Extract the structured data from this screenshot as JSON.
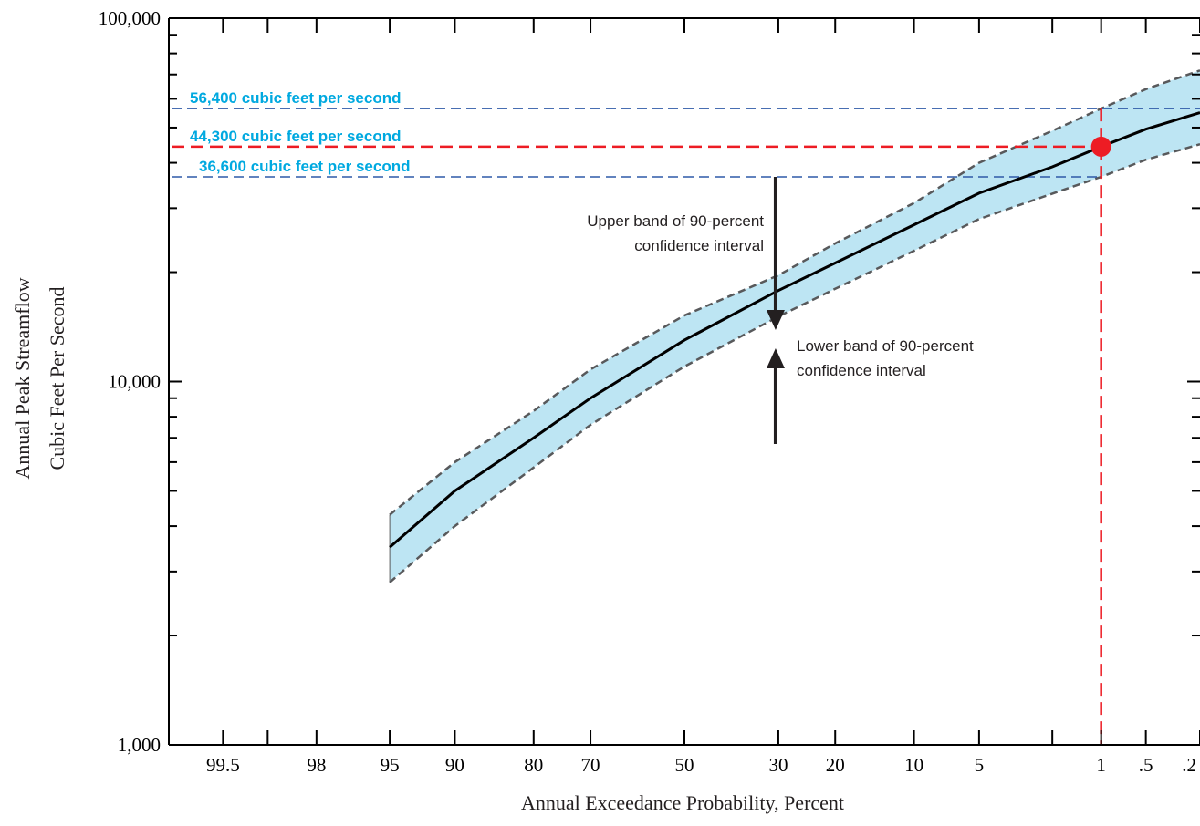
{
  "chart_data": {
    "type": "line",
    "xlabel": "Annual Exceedance Probability, Percent",
    "ylabel_lines": [
      "Annual Peak Streamflow",
      "Cubic Feet Per Second"
    ],
    "y_scale": "log",
    "ylim": [
      1000,
      100000
    ],
    "y_tick_labels": [
      "1,000",
      "10,000",
      "100,000"
    ],
    "y_tick_values": [
      1000,
      10000,
      100000
    ],
    "x_scale": "normal-probability (reversed)",
    "x_tick_labels": [
      "99.5",
      "98",
      "95",
      "90",
      "80",
      "70",
      "50",
      "30",
      "20",
      "10",
      "5",
      "1",
      ".5",
      ".2"
    ],
    "x_tick_values": [
      99.5,
      98,
      95,
      90,
      80,
      70,
      50,
      30,
      20,
      10,
      5,
      1,
      0.5,
      0.2
    ],
    "x_range": [
      99.8,
      0.2
    ],
    "series": [
      {
        "role": "estimate",
        "x": [
          95,
          90,
          80,
          70,
          50,
          30,
          20,
          10,
          5,
          2,
          1,
          0.5,
          0.2
        ],
        "y": [
          3500,
          5000,
          7000,
          9000,
          13000,
          17800,
          21200,
          27000,
          33000,
          39000,
          44300,
          49500,
          55000
        ]
      },
      {
        "role": "upper-90",
        "x": [
          95,
          90,
          80,
          70,
          50,
          30,
          20,
          10,
          5,
          2,
          1,
          0.5,
          0.2
        ],
        "y": [
          4300,
          6000,
          8300,
          10800,
          15200,
          19600,
          24000,
          31000,
          40000,
          49000,
          56400,
          63800,
          71800
        ]
      },
      {
        "role": "lower-90",
        "x": [
          95,
          90,
          80,
          70,
          50,
          30,
          20,
          10,
          5,
          2,
          1,
          0.5,
          0.2
        ],
        "y": [
          2800,
          4000,
          5800,
          7600,
          11000,
          15100,
          18000,
          22900,
          28000,
          32900,
          36600,
          40800,
          45000
        ]
      }
    ],
    "highlight": {
      "x": 1,
      "y": 44300
    },
    "reference_lines": [
      {
        "label": "56,400 cubic feet per second",
        "value": 56400
      },
      {
        "label": "44,300 cubic feet per second",
        "value": 44300
      },
      {
        "label": "36,600 cubic feet per second",
        "value": 36600
      }
    ],
    "annotations": [
      {
        "id": "upper",
        "lines": [
          "Upper band of 90-percent",
          "confidence interval"
        ]
      },
      {
        "id": "lower",
        "lines": [
          "Lower band of 90-percent",
          "confidence interval"
        ]
      }
    ],
    "colors": {
      "band_fill": "#bde5f3",
      "band_edge": "#58595b",
      "estimate_line": "#000000",
      "highlight": "#ed1c24",
      "reference_blue": "#2e5aa8",
      "label_blue": "#00a9e0"
    }
  }
}
